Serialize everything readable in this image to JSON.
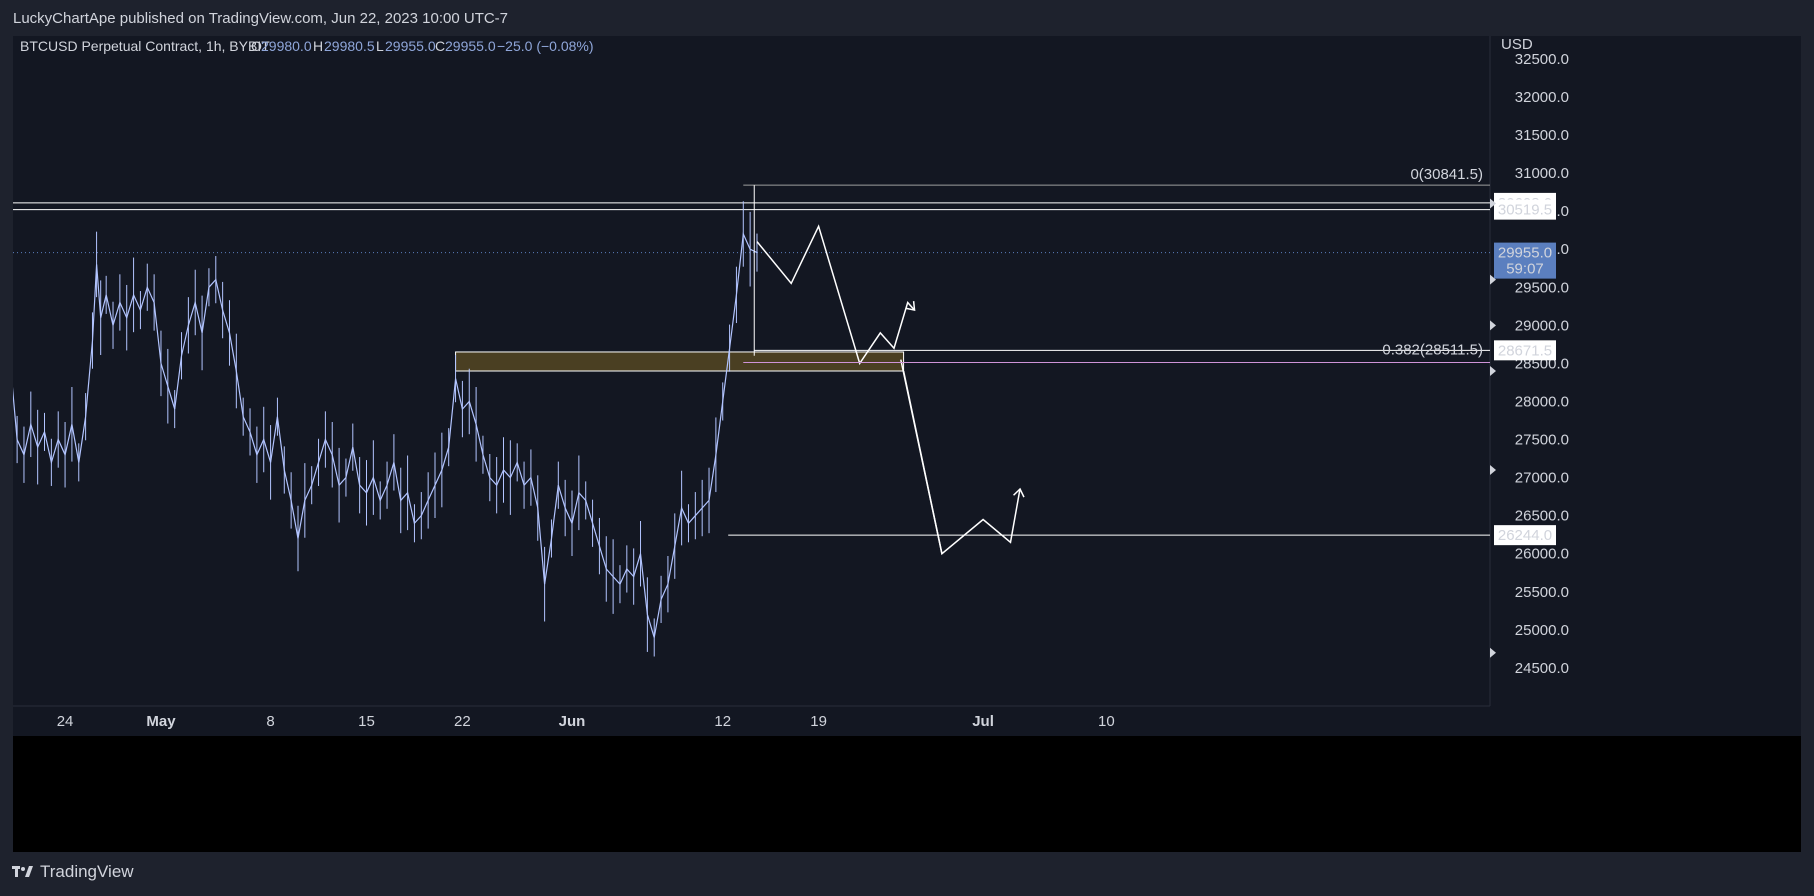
{
  "header": {
    "published_text": "LuckyChartApe published on TradingView.com, Jun 22, 2023 10:00 UTC-7"
  },
  "legend": {
    "symbol": "BTCUSD Perpetual Contract, 1h, BYBIT",
    "o_label": "O",
    "o_value": "29980.0",
    "h_label": "H",
    "h_value": "29980.5",
    "l_label": "L",
    "l_value": "29955.0",
    "c_label": "C",
    "c_value": "29955.0",
    "change": "−25.0 (−0.08%)"
  },
  "footer": {
    "brand": "TradingView"
  },
  "colors": {
    "background": "#000000",
    "panel": "#1e222d",
    "candle": "#b2c4ff",
    "drawing": "#ffffff",
    "fib_line": "#ce93d8",
    "current_price_bg": "#5b7fbf",
    "zone_fill": "#4a3f22",
    "axis_text": "#d1d4dc",
    "legend_value": "#8fa6d9"
  },
  "chart_data": {
    "type": "line",
    "symbol": "BTCUSD Perpetual Contract",
    "interval": "1h",
    "exchange": "BYBIT",
    "currency": "USD",
    "y_axis_label": "USD",
    "ylim": [
      24000,
      32800
    ],
    "y_ticks": [
      "32500.0",
      "32000.0",
      "31500.0",
      "31000.0",
      "30500.0",
      "30000.0",
      "29500.0",
      "29000.0",
      "28500.0",
      "28000.0",
      "27500.0",
      "27000.0",
      "26500.0",
      "26000.0",
      "25500.0",
      "25000.0",
      "24500.0"
    ],
    "x_ticks": [
      {
        "label": "24",
        "x": 24
      },
      {
        "label": "May",
        "x": 31
      },
      {
        "label": "8",
        "x": 39
      },
      {
        "label": "15",
        "x": 46
      },
      {
        "label": "22",
        "x": 53
      },
      {
        "label": "Jun",
        "x": 61
      },
      {
        "label": "12",
        "x": 72
      },
      {
        "label": "19",
        "x": 79
      },
      {
        "label": "Jul",
        "x": 91
      },
      {
        "label": "10",
        "x": 100
      }
    ],
    "price_series": [
      [
        20.0,
        28500
      ],
      [
        20.5,
        27500
      ],
      [
        21,
        27300
      ],
      [
        21.5,
        27700
      ],
      [
        22,
        27400
      ],
      [
        22.5,
        27600
      ],
      [
        23,
        27200
      ],
      [
        23.5,
        27500
      ],
      [
        24,
        27300
      ],
      [
        24.5,
        27700
      ],
      [
        25,
        27200
      ],
      [
        25.5,
        27800
      ],
      [
        26,
        28800
      ],
      [
        26.3,
        29800
      ],
      [
        26.6,
        29100
      ],
      [
        27,
        29400
      ],
      [
        27.5,
        29000
      ],
      [
        28,
        29300
      ],
      [
        28.5,
        29100
      ],
      [
        29,
        29400
      ],
      [
        29.5,
        29200
      ],
      [
        30,
        29500
      ],
      [
        30.5,
        29300
      ],
      [
        31,
        28500
      ],
      [
        31.5,
        28200
      ],
      [
        32,
        27900
      ],
      [
        32.5,
        28600
      ],
      [
        33,
        29000
      ],
      [
        33.5,
        29300
      ],
      [
        34,
        28900
      ],
      [
        34.5,
        29500
      ],
      [
        35,
        29600
      ],
      [
        35.5,
        29200
      ],
      [
        36,
        28900
      ],
      [
        36.5,
        28400
      ],
      [
        37,
        27800
      ],
      [
        37.5,
        27600
      ],
      [
        38,
        27300
      ],
      [
        38.5,
        27500
      ],
      [
        39,
        27200
      ],
      [
        39.5,
        27800
      ],
      [
        40,
        27100
      ],
      [
        40.5,
        26700
      ],
      [
        41,
        26200
      ],
      [
        41.5,
        26700
      ],
      [
        42,
        26900
      ],
      [
        42.5,
        27200
      ],
      [
        43,
        27500
      ],
      [
        43.5,
        27300
      ],
      [
        44,
        26900
      ],
      [
        44.5,
        27000
      ],
      [
        45,
        27400
      ],
      [
        45.5,
        26900
      ],
      [
        46,
        26800
      ],
      [
        46.5,
        27000
      ],
      [
        47,
        26700
      ],
      [
        47.5,
        26900
      ],
      [
        48,
        27200
      ],
      [
        48.5,
        26700
      ],
      [
        49,
        26800
      ],
      [
        49.5,
        26400
      ],
      [
        50,
        26500
      ],
      [
        50.5,
        26700
      ],
      [
        51,
        26900
      ],
      [
        51.5,
        27100
      ],
      [
        52,
        27400
      ],
      [
        52.5,
        28300
      ],
      [
        53,
        27900
      ],
      [
        53.5,
        28000
      ],
      [
        54,
        27700
      ],
      [
        54.5,
        27300
      ],
      [
        55,
        27000
      ],
      [
        55.5,
        26900
      ],
      [
        56,
        27100
      ],
      [
        56.5,
        27000
      ],
      [
        57,
        27200
      ],
      [
        57.5,
        26900
      ],
      [
        58,
        27000
      ],
      [
        58.5,
        26600
      ],
      [
        59,
        25600
      ],
      [
        59.5,
        26200
      ],
      [
        60,
        26900
      ],
      [
        60.5,
        26600
      ],
      [
        61,
        26400
      ],
      [
        61.5,
        26800
      ],
      [
        62,
        26700
      ],
      [
        62.5,
        26400
      ],
      [
        63,
        26100
      ],
      [
        63.5,
        25800
      ],
      [
        64,
        25700
      ],
      [
        64.5,
        25600
      ],
      [
        65,
        25800
      ],
      [
        65.5,
        25700
      ],
      [
        66,
        26000
      ],
      [
        66.5,
        25200
      ],
      [
        67,
        24900
      ],
      [
        67.5,
        25400
      ],
      [
        68,
        25600
      ],
      [
        68.5,
        26100
      ],
      [
        69,
        26600
      ],
      [
        69.5,
        26400
      ],
      [
        70,
        26500
      ],
      [
        70.5,
        26600
      ],
      [
        71,
        26700
      ],
      [
        71.5,
        27300
      ],
      [
        72,
        28000
      ],
      [
        72.5,
        28700
      ],
      [
        73,
        29400
      ],
      [
        73.5,
        30200
      ],
      [
        74,
        30000
      ],
      [
        74.5,
        29955
      ]
    ],
    "horizontal_levels": [
      {
        "label": "30608.0",
        "value": 30608.0
      },
      {
        "label": "30519.5",
        "value": 30519.5
      },
      {
        "label": "28671.5",
        "value": 28671.5
      },
      {
        "label": "26244.0",
        "value": 26244.0
      }
    ],
    "current_price": {
      "label": "29955.0",
      "value": 29955.0,
      "countdown": "59:07"
    },
    "fibonacci": [
      {
        "label": "0(30841.5)",
        "level": 0,
        "value": 30841.5
      },
      {
        "label": "0.382(28511.5)",
        "level": 0.382,
        "value": 28511.5
      }
    ],
    "zone": {
      "from_value": 28400,
      "to_value": 28650
    },
    "projection_path": [
      [
        74.5,
        30100
      ],
      [
        77,
        29550
      ],
      [
        79,
        30300
      ],
      [
        82,
        28500
      ],
      [
        83.5,
        28900
      ],
      [
        84.5,
        28700
      ],
      [
        85.5,
        29300
      ],
      [
        86,
        29200
      ]
    ],
    "projection_path_2": [
      [
        85,
        28550
      ],
      [
        88,
        26000
      ],
      [
        91,
        26450
      ],
      [
        93,
        26150
      ],
      [
        93.7,
        26850
      ]
    ]
  }
}
